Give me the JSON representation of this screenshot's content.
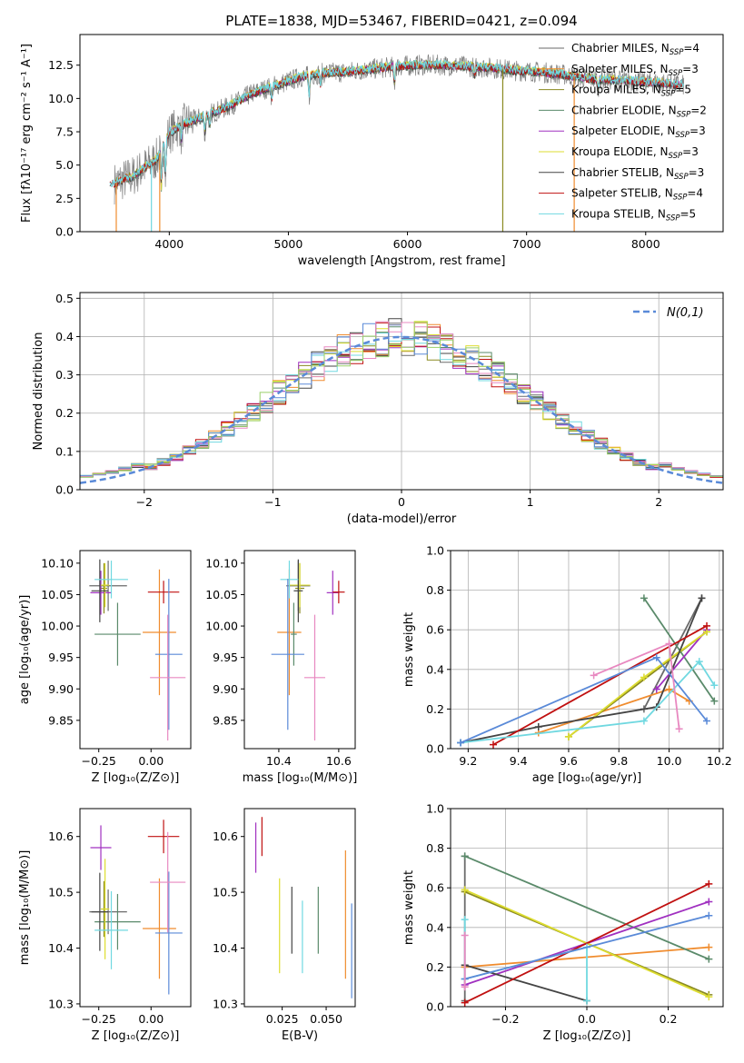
{
  "title": "PLATE=1838, MJD=53467, FIBERID=0421, z=0.094",
  "colors": {
    "Chabrier MILES": "#6a6a6a",
    "Salpeter MILES": "#f08c2e",
    "Kroupa MILES": "#8a8a20",
    "Chabrier ELODIE": "#5a8a6a",
    "Salpeter ELODIE": "#a030c0",
    "Kroupa ELODIE": "#dddd30",
    "Chabrier STELIB": "#444444",
    "Salpeter STELIB": "#c01010",
    "Kroupa STELIB": "#70d8e0",
    "extra_blue": "#5a8ad8",
    "extra_pink": "#e888c0",
    "extra_green": "#9ad06a",
    "gauss": "#5a8ad8"
  },
  "chart_data": [
    {
      "id": "spectrum",
      "type": "line",
      "title": "PLATE=1838, MJD=53467, FIBERID=0421, z=0.094",
      "xlabel": "wavelength [Angstrom, rest frame]",
      "ylabel": "Flux [fλ10⁻¹⁷ erg cm⁻² s⁻¹ A⁻¹]",
      "xlim": [
        3250,
        8650
      ],
      "ylim": [
        0,
        14.8
      ],
      "xticks": [
        4000,
        5000,
        6000,
        7000,
        8000
      ],
      "yticks": [
        0.0,
        2.5,
        5.0,
        7.5,
        10.0,
        12.5
      ],
      "legend_position": "top-right",
      "legend": [
        {
          "name": "Chabrier MILES",
          "nssp": "4"
        },
        {
          "name": "Salpeter MILES",
          "nssp": "3"
        },
        {
          "name": "Kroupa MILES",
          "nssp": "5"
        },
        {
          "name": "Chabrier ELODIE",
          "nssp": "2"
        },
        {
          "name": "Salpeter ELODIE",
          "nssp": "3"
        },
        {
          "name": "Kroupa ELODIE",
          "nssp": "3"
        },
        {
          "name": "Chabrier STELIB",
          "nssp": "3"
        },
        {
          "name": "Salpeter STELIB",
          "nssp": "4"
        },
        {
          "name": "Kroupa STELIB",
          "nssp": "5"
        }
      ],
      "continuum": {
        "x": [
          3500,
          3700,
          3900,
          4000,
          4100,
          4300,
          4500,
          4700,
          4900,
          5100,
          5300,
          5500,
          5700,
          5900,
          6100,
          6300,
          6500,
          6700,
          6900,
          7100,
          7300,
          7500,
          7700,
          7900,
          8100,
          8300
        ],
        "y": [
          3.5,
          4.2,
          5.5,
          7.4,
          8.0,
          8.7,
          9.4,
          10.4,
          11.0,
          11.6,
          11.9,
          12.0,
          12.2,
          12.4,
          12.5,
          12.5,
          12.4,
          12.3,
          12.1,
          12.0,
          11.8,
          11.5,
          11.4,
          11.3,
          11.2,
          11.0
        ]
      },
      "spikes": [
        {
          "x": 3555,
          "y": 0.0
        },
        {
          "x": 3850,
          "y": 0.0
        },
        {
          "x": 3920,
          "y": 0.0
        },
        {
          "x": 6800,
          "y": 0.0
        },
        {
          "x": 7400,
          "y": 0.0
        }
      ]
    },
    {
      "id": "residuals",
      "type": "histogram",
      "xlabel": "(data-model)/error",
      "ylabel": "Normed distribution",
      "xlim": [
        -2.5,
        2.5
      ],
      "ylim": [
        0,
        0.515
      ],
      "xticks": [
        -2,
        -1,
        0,
        1,
        2
      ],
      "yticks": [
        0.0,
        0.1,
        0.2,
        0.3,
        0.4,
        0.5
      ],
      "grid": true,
      "bin_width": 0.1,
      "bin_start": -2.5,
      "legend_position": "top-right",
      "gauss_label": "N(0,1)"
    },
    {
      "id": "age-vs-Z",
      "type": "errorbar",
      "xlabel": "Z [log₁₀(Z/Z⊙)]",
      "ylabel": "age  [log₁₀(age/yr)]",
      "xlim": [
        -0.34,
        0.19
      ],
      "ylim": [
        9.805,
        10.12
      ],
      "xticks": [
        -0.25,
        0.0
      ],
      "yticks": [
        9.85,
        9.9,
        9.95,
        10.0,
        10.05,
        10.1
      ],
      "points": [
        {
          "series": "Chabrier MILES",
          "x": -0.205,
          "y": 10.064,
          "xerr": 0.09,
          "yerr": 0.04
        },
        {
          "series": "Salpeter MILES",
          "x": 0.04,
          "y": 9.99,
          "xerr": 0.08,
          "yerr": 0.1
        },
        {
          "series": "Kroupa MILES",
          "x": -0.225,
          "y": 10.06,
          "xerr": 0.015,
          "yerr": 0.04
        },
        {
          "series": "Chabrier ELODIE",
          "x": -0.16,
          "y": 9.987,
          "xerr": 0.11,
          "yerr": 0.05
        },
        {
          "series": "Salpeter ELODIE",
          "x": -0.24,
          "y": 10.053,
          "xerr": 0.05,
          "yerr": 0.035
        },
        {
          "series": "Kroupa ELODIE",
          "x": -0.22,
          "y": 10.065,
          "xerr": 0.02,
          "yerr": 0.035
        },
        {
          "series": "Chabrier STELIB",
          "x": -0.245,
          "y": 10.056,
          "xerr": 0.04,
          "yerr": 0.05
        },
        {
          "series": "Salpeter STELIB",
          "x": 0.06,
          "y": 10.054,
          "xerr": 0.075,
          "yerr": 0.018
        },
        {
          "series": "Kroupa STELIB",
          "x": -0.19,
          "y": 10.074,
          "xerr": 0.08,
          "yerr": 0.03
        },
        {
          "series": "extra_blue",
          "x": 0.085,
          "y": 9.955,
          "xerr": 0.065,
          "yerr": 0.12
        },
        {
          "series": "extra_pink",
          "x": 0.08,
          "y": 9.918,
          "xerr": 0.085,
          "yerr": 0.1
        }
      ]
    },
    {
      "id": "age-vs-mass",
      "type": "errorbar",
      "xlabel": "mass [log₁₀(M/M⊙)]",
      "ylabel": "",
      "xlim": [
        10.285,
        10.655
      ],
      "ylim": [
        9.805,
        10.12
      ],
      "xticks": [
        10.4,
        10.6
      ],
      "yticks": [
        9.85,
        9.9,
        9.95,
        10.0,
        10.05,
        10.1
      ],
      "points": [
        {
          "series": "Chabrier MILES",
          "x": 10.465,
          "y": 10.064,
          "xerr": 0.04,
          "yerr": 0.04
        },
        {
          "series": "Salpeter MILES",
          "x": 10.435,
          "y": 9.99,
          "xerr": 0.04,
          "yerr": 0.1
        },
        {
          "series": "Kroupa MILES",
          "x": 10.47,
          "y": 10.06,
          "xerr": 0.015,
          "yerr": 0.04
        },
        {
          "series": "Chabrier ELODIE",
          "x": 10.45,
          "y": 9.987,
          "xerr": 0.01,
          "yerr": 0.05
        },
        {
          "series": "Salpeter ELODIE",
          "x": 10.58,
          "y": 10.053,
          "xerr": 0.02,
          "yerr": 0.035
        },
        {
          "series": "Kroupa ELODIE",
          "x": 10.47,
          "y": 10.065,
          "xerr": 0.035,
          "yerr": 0.035
        },
        {
          "series": "Chabrier STELIB",
          "x": 10.465,
          "y": 10.056,
          "xerr": 0.015,
          "yerr": 0.05
        },
        {
          "series": "Salpeter STELIB",
          "x": 10.6,
          "y": 10.054,
          "xerr": 0.02,
          "yerr": 0.018
        },
        {
          "series": "Kroupa STELIB",
          "x": 10.435,
          "y": 10.074,
          "xerr": 0.03,
          "yerr": 0.03
        },
        {
          "series": "extra_blue",
          "x": 10.43,
          "y": 9.955,
          "xerr": 0.055,
          "yerr": 0.12
        },
        {
          "series": "extra_pink",
          "x": 10.52,
          "y": 9.918,
          "xerr": 0.035,
          "yerr": 0.1
        }
      ]
    },
    {
      "id": "weight-vs-age",
      "type": "line",
      "xlabel": "age  [log₁₀(age/yr)]",
      "ylabel": "mass weight",
      "xlim": [
        9.13,
        10.215
      ],
      "ylim": [
        0,
        1
      ],
      "xticks": [
        9.2,
        9.4,
        9.6,
        9.8,
        10.0,
        10.2
      ],
      "yticks": [
        0.0,
        0.2,
        0.4,
        0.6,
        0.8,
        1.0
      ],
      "grid": true,
      "series": [
        {
          "name": "Chabrier MILES",
          "x": [
            9.9,
            10.13
          ],
          "y": [
            0.2,
            0.76
          ]
        },
        {
          "name": "Salpeter MILES",
          "x": [
            9.48,
            10.0,
            10.08
          ],
          "y": [
            0.08,
            0.3,
            0.24
          ]
        },
        {
          "name": "Kroupa MILES",
          "x": [
            9.6,
            10.15
          ],
          "y": [
            0.06,
            0.59
          ]
        },
        {
          "name": "Chabrier ELODIE",
          "x": [
            9.9,
            10.18
          ],
          "y": [
            0.76,
            0.24
          ]
        },
        {
          "name": "Salpeter ELODIE",
          "x": [
            9.95,
            10.15
          ],
          "y": [
            0.3,
            0.6
          ]
        },
        {
          "name": "Kroupa ELODIE",
          "x": [
            9.6,
            9.9,
            10.15
          ],
          "y": [
            0.06,
            0.36,
            0.59
          ]
        },
        {
          "name": "Chabrier STELIB",
          "x": [
            9.17,
            9.48,
            9.95,
            10.13
          ],
          "y": [
            0.03,
            0.11,
            0.21,
            0.76
          ]
        },
        {
          "name": "Salpeter STELIB",
          "x": [
            9.3,
            10.15
          ],
          "y": [
            0.02,
            0.62
          ]
        },
        {
          "name": "Kroupa STELIB",
          "x": [
            9.17,
            9.9,
            10.12,
            10.18
          ],
          "y": [
            0.03,
            0.14,
            0.44,
            0.32
          ]
        },
        {
          "name": "extra_blue",
          "x": [
            9.17,
            9.95,
            10.15
          ],
          "y": [
            0.03,
            0.46,
            0.14
          ]
        },
        {
          "name": "extra_pink",
          "x": [
            9.7,
            10.0,
            10.04
          ],
          "y": [
            0.37,
            0.53,
            0.1
          ]
        }
      ]
    },
    {
      "id": "mass-vs-Z",
      "type": "errorbar",
      "xlabel": "Z [log₁₀(Z/Z⊙)]",
      "ylabel": "mass [log₁₀(M/M⊙)]",
      "xlim": [
        -0.34,
        0.19
      ],
      "ylim": [
        10.295,
        10.65
      ],
      "xticks": [
        -0.25,
        0.0
      ],
      "yticks": [
        10.3,
        10.4,
        10.5,
        10.6
      ],
      "points": [
        {
          "series": "Chabrier MILES",
          "x": -0.205,
          "y": 10.465,
          "xerr": 0.09,
          "yerr": 0.04
        },
        {
          "series": "Salpeter MILES",
          "x": 0.04,
          "y": 10.435,
          "xerr": 0.08,
          "yerr": 0.09
        },
        {
          "series": "Kroupa MILES",
          "x": -0.225,
          "y": 10.47,
          "xerr": 0.015,
          "yerr": 0.05
        },
        {
          "series": "Chabrier ELODIE",
          "x": -0.16,
          "y": 10.447,
          "xerr": 0.11,
          "yerr": 0.05
        },
        {
          "series": "Salpeter ELODIE",
          "x": -0.24,
          "y": 10.58,
          "xerr": 0.05,
          "yerr": 0.04
        },
        {
          "series": "Kroupa ELODIE",
          "x": -0.22,
          "y": 10.47,
          "xerr": 0.02,
          "yerr": 0.09
        },
        {
          "series": "Chabrier STELIB",
          "x": -0.245,
          "y": 10.465,
          "xerr": 0.04,
          "yerr": 0.07
        },
        {
          "series": "Salpeter STELIB",
          "x": 0.06,
          "y": 10.6,
          "xerr": 0.075,
          "yerr": 0.03
        },
        {
          "series": "Kroupa STELIB",
          "x": -0.19,
          "y": 10.432,
          "xerr": 0.08,
          "yerr": 0.07
        },
        {
          "series": "extra_blue",
          "x": 0.085,
          "y": 10.427,
          "xerr": 0.065,
          "yerr": 0.11
        },
        {
          "series": "extra_pink",
          "x": 0.08,
          "y": 10.518,
          "xerr": 0.085,
          "yerr": 0.09
        }
      ]
    },
    {
      "id": "mass-vs-ebv",
      "type": "errorbar",
      "xlabel": "E(B-V)",
      "ylabel": "",
      "xlim": [
        0.0035,
        0.0665
      ],
      "ylim": [
        10.295,
        10.65
      ],
      "xticks": [
        0.025,
        0.05
      ],
      "yticks": [
        10.3,
        10.4,
        10.5,
        10.6
      ],
      "points": [
        {
          "series": "Salpeter ELODIE",
          "x": 0.01,
          "y": 10.58,
          "xerr": 0,
          "yerr": 0.045
        },
        {
          "series": "Salpeter STELIB",
          "x": 0.0135,
          "y": 10.6,
          "xerr": 0,
          "yerr": 0.035
        },
        {
          "series": "Kroupa ELODIE",
          "x": 0.0235,
          "y": 10.44,
          "xerr": 0,
          "yerr": 0.085
        },
        {
          "series": "Chabrier STELIB",
          "x": 0.0305,
          "y": 10.45,
          "xerr": 0,
          "yerr": 0.06
        },
        {
          "series": "Kroupa STELIB",
          "x": 0.0365,
          "y": 10.42,
          "xerr": 0,
          "yerr": 0.065
        },
        {
          "series": "Chabrier ELODIE",
          "x": 0.0455,
          "y": 10.45,
          "xerr": 0,
          "yerr": 0.06
        },
        {
          "series": "Salpeter MILES",
          "x": 0.061,
          "y": 10.46,
          "xerr": 0,
          "yerr": 0.115
        },
        {
          "series": "extra_blue",
          "x": 0.0645,
          "y": 10.395,
          "xerr": 0,
          "yerr": 0.085
        }
      ]
    },
    {
      "id": "weight-vs-Z",
      "type": "line",
      "xlabel": "Z [log₁₀(Z/Z⊙)]",
      "ylabel": "mass weight",
      "xlim": [
        -0.335,
        0.335
      ],
      "ylim": [
        0,
        1
      ],
      "xticks": [
        -0.2,
        0.0,
        0.2
      ],
      "yticks": [
        0.0,
        0.2,
        0.4,
        0.6,
        0.8,
        1.0
      ],
      "grid": true,
      "series": [
        {
          "name": "Chabrier MILES",
          "x": [
            -0.3,
            -0.3,
            -0.3
          ],
          "y": [
            0.2,
            0.76,
            0.03
          ]
        },
        {
          "name": "Salpeter MILES",
          "x": [
            -0.3,
            0.3
          ],
          "y": [
            0.2,
            0.3
          ]
        },
        {
          "name": "Kroupa MILES",
          "x": [
            -0.3,
            0.3
          ],
          "y": [
            0.58,
            0.06
          ]
        },
        {
          "name": "Chabrier ELODIE",
          "x": [
            -0.3,
            0.3
          ],
          "y": [
            0.76,
            0.24
          ]
        },
        {
          "name": "Salpeter ELODIE",
          "x": [
            -0.3,
            0.3
          ],
          "y": [
            0.11,
            0.53
          ]
        },
        {
          "name": "Kroupa ELODIE",
          "x": [
            -0.3,
            0.3
          ],
          "y": [
            0.59,
            0.05
          ]
        },
        {
          "name": "Chabrier STELIB",
          "x": [
            -0.3,
            0.0
          ],
          "y": [
            0.21,
            0.03
          ]
        },
        {
          "name": "Salpeter STELIB",
          "x": [
            -0.3,
            0.3
          ],
          "y": [
            0.02,
            0.62
          ]
        },
        {
          "name": "Kroupa STELIB",
          "x": [
            -0.3,
            -0.3,
            0.0,
            0.0
          ],
          "y": [
            0.44,
            0.14,
            0.3,
            0.03
          ]
        },
        {
          "name": "extra_blue",
          "x": [
            -0.3,
            0.3
          ],
          "y": [
            0.14,
            0.46
          ]
        },
        {
          "name": "extra_pink",
          "x": [
            -0.3,
            -0.3
          ],
          "y": [
            0.36,
            0.1
          ]
        }
      ]
    }
  ]
}
